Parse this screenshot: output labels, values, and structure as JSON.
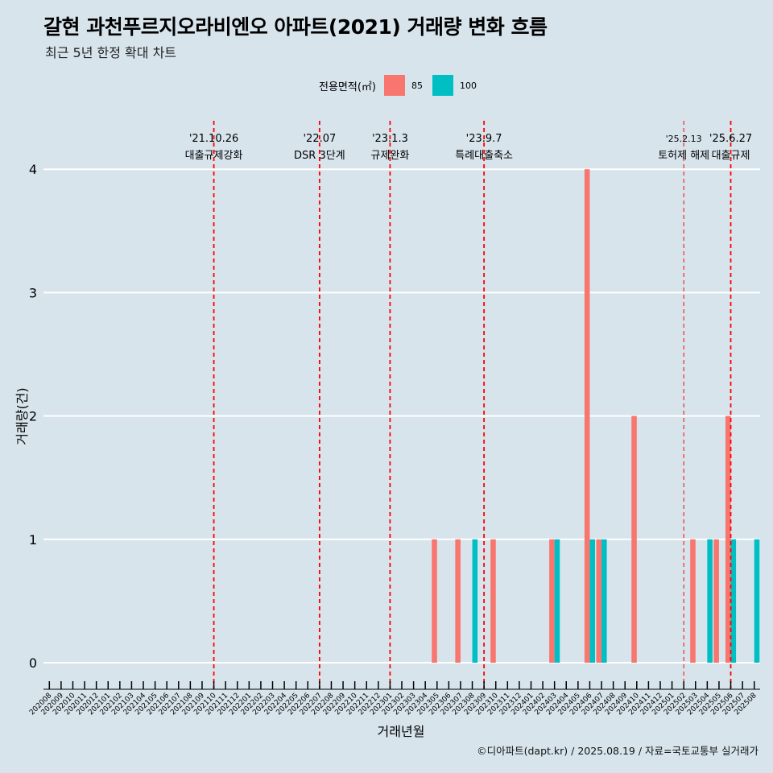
{
  "title": "갈현 과천푸르지오라비엔오 아파트(2021) 거래량 변화 흐름",
  "subtitle": "최근 5년 한정 확대 차트",
  "caption": "©디아파트(dapt.kr) / 2025.08.19 / 자료=국토교통부 실거래가",
  "legend": {
    "title": "전용면적(㎡)",
    "items": [
      {
        "label": "85",
        "color": "#f8766d"
      },
      {
        "label": "100",
        "color": "#00bfc4"
      }
    ]
  },
  "chart_data": {
    "type": "bar",
    "xlabel": "거래년월",
    "ylabel": "거래량(건)",
    "ylim": [
      0,
      4
    ],
    "yticks": [
      "0",
      "1",
      "2",
      "3",
      "4"
    ],
    "grid": true,
    "legend_position": "top",
    "categories": [
      "202008",
      "202009",
      "202010",
      "202011",
      "202012",
      "202101",
      "202102",
      "202103",
      "202104",
      "202105",
      "202106",
      "202107",
      "202108",
      "202109",
      "202110",
      "202111",
      "202112",
      "202201",
      "202202",
      "202203",
      "202204",
      "202205",
      "202206",
      "202207",
      "202208",
      "202209",
      "202210",
      "202211",
      "202212",
      "202301",
      "202302",
      "202303",
      "202304",
      "202305",
      "202306",
      "202307",
      "202308",
      "202309",
      "202310",
      "202311",
      "202312",
      "202401",
      "202402",
      "202403",
      "202404",
      "202405",
      "202406",
      "202407",
      "202408",
      "202409",
      "202410",
      "202411",
      "202412",
      "202501",
      "202502",
      "202503",
      "202504",
      "202505",
      "202506",
      "202507",
      "202508"
    ],
    "series": [
      {
        "name": "85",
        "color": "#f8766d",
        "values": [
          0,
          0,
          0,
          0,
          0,
          0,
          0,
          0,
          0,
          0,
          0,
          0,
          0,
          0,
          0,
          0,
          0,
          0,
          0,
          0,
          0,
          0,
          0,
          0,
          0,
          0,
          0,
          0,
          0,
          0,
          0,
          0,
          0,
          1,
          0,
          1,
          0,
          0,
          1,
          0,
          0,
          0,
          0,
          1,
          0,
          0,
          4,
          1,
          0,
          0,
          2,
          0,
          0,
          0,
          0,
          1,
          0,
          1,
          2,
          0,
          0
        ]
      },
      {
        "name": "100",
        "color": "#00bfc4",
        "values": [
          0,
          0,
          0,
          0,
          0,
          0,
          0,
          0,
          0,
          0,
          0,
          0,
          0,
          0,
          0,
          0,
          0,
          0,
          0,
          0,
          0,
          0,
          0,
          0,
          0,
          0,
          0,
          0,
          0,
          0,
          0,
          0,
          0,
          0,
          0,
          0,
          1,
          0,
          0,
          0,
          0,
          0,
          0,
          1,
          0,
          0,
          1,
          1,
          0,
          0,
          0,
          0,
          0,
          0,
          0,
          0,
          1,
          0,
          1,
          0,
          1
        ]
      }
    ],
    "annotations": [
      {
        "x": "202110",
        "date": "'21.10.26",
        "label": "대출규제강화"
      },
      {
        "x": "202207",
        "date": "'22.07",
        "label": "DSR 3단계"
      },
      {
        "x": "202301",
        "date": "'23.1.3",
        "label": "규제완화"
      },
      {
        "x": "202309",
        "date": "'23.9.7",
        "label": "특례대출축소"
      },
      {
        "x": "202502",
        "date": "'25.2.13",
        "label": "토허제 해제"
      },
      {
        "x": "202506",
        "date": "'25.6.27",
        "label": "대출규제"
      }
    ]
  }
}
